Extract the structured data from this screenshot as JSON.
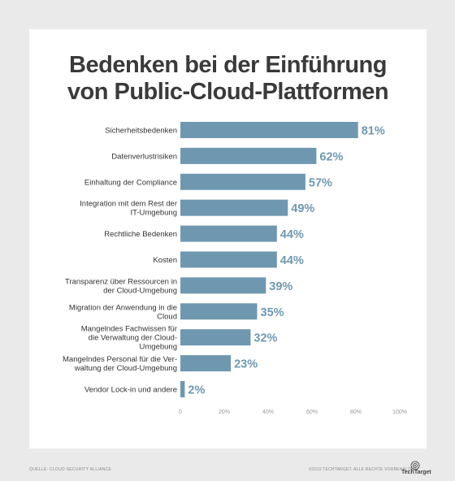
{
  "title_line1": "Bedenken bei der Einführung",
  "title_line2": "von Public-Cloud-Plattformen",
  "source": "QUELLE: CLOUD SECURITY ALLIANCE",
  "copyright": "©2019 TECHTARGET. ALLE RECHTE VORBEHALTEN.",
  "logo_text": "TechTarget",
  "colors": {
    "bar": "#6f98b0",
    "value_label": "#6f98b0",
    "category_label": "#333333",
    "axis_tick": "#999999"
  },
  "chart_data": {
    "type": "bar",
    "orientation": "horizontal",
    "categories": [
      [
        "Sicherheitsbedenken"
      ],
      [
        "Datenverlustrisiken"
      ],
      [
        "Einhaltung der Compliance"
      ],
      [
        "Integration mit dem Rest der",
        "IT-Umgebung"
      ],
      [
        "Rechtliche Bedenken"
      ],
      [
        "Kosten"
      ],
      [
        "Transparenz über Ressourcen in",
        "der Cloud-Umgebung"
      ],
      [
        "Migration der Anwendung in die",
        "Cloud"
      ],
      [
        "Mangelndes Fachwissen für",
        "die Verwaltung der Cloud-",
        "Umgebung"
      ],
      [
        "Mangelndes Personal für die Ver-",
        "waltung der Cloud-Umgebung"
      ],
      [
        "Vendor Lock-in und andere"
      ]
    ],
    "values": [
      81,
      62,
      57,
      49,
      44,
      44,
      39,
      35,
      32,
      23,
      2
    ],
    "value_labels": [
      "81%",
      "62%",
      "57%",
      "49%",
      "44%",
      "44%",
      "39%",
      "35%",
      "32%",
      "23%",
      "2%"
    ],
    "xlim": [
      0,
      100
    ],
    "x_ticks": [
      "0",
      "20%",
      "40%",
      "60%",
      "80%",
      "100%"
    ],
    "grid": false
  }
}
